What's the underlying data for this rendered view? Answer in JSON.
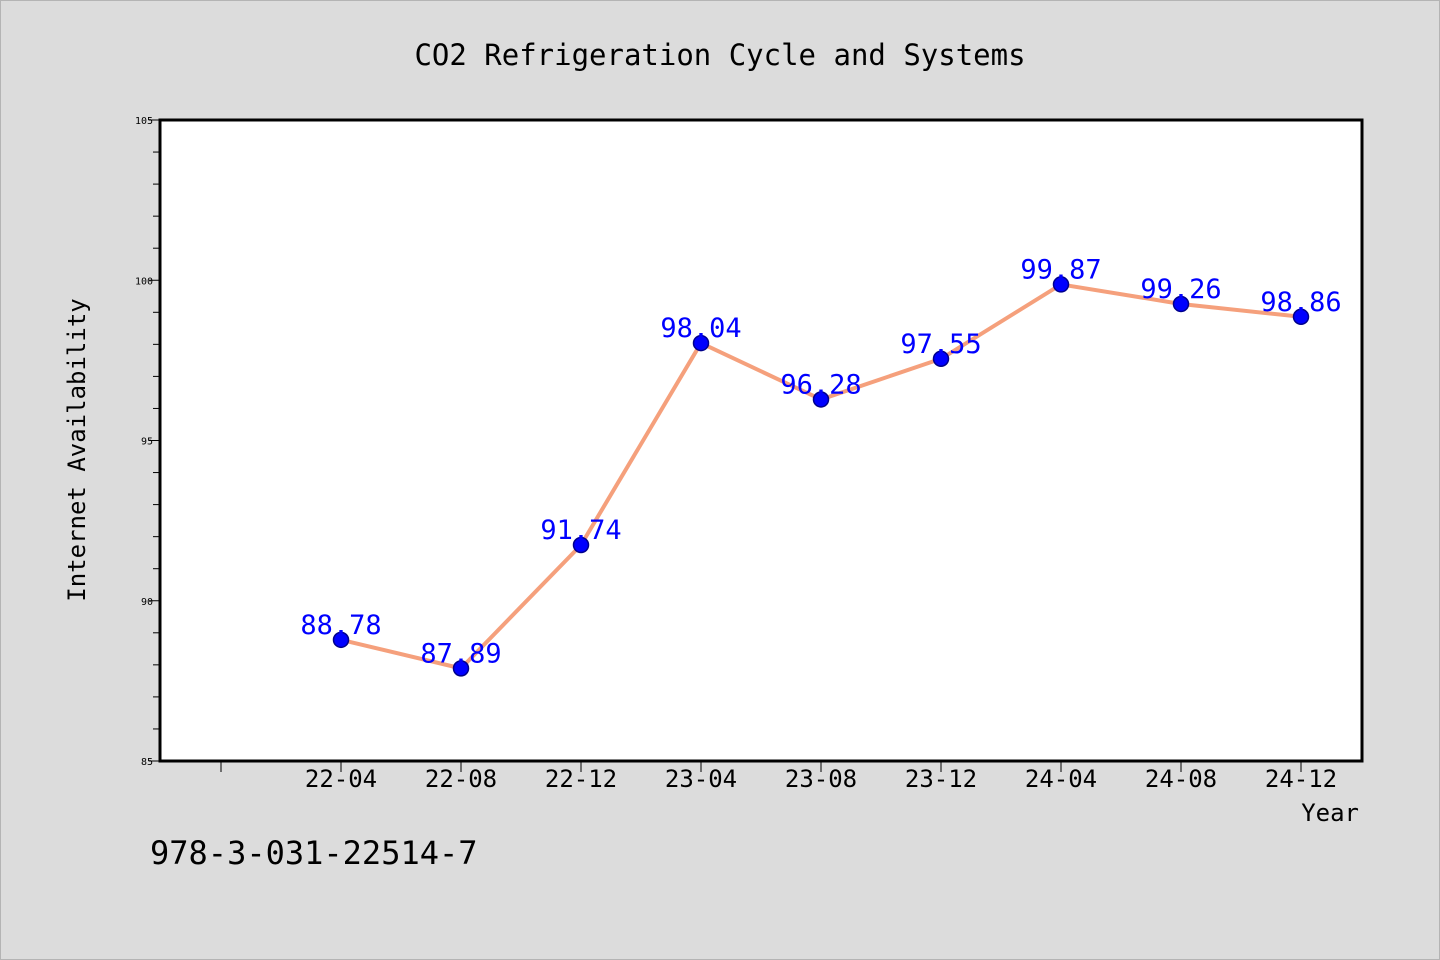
{
  "footer": {
    "code": "978-3-031-22514-7"
  },
  "colors": {
    "line": "#f5a07c",
    "marker": "#0000ff",
    "marker_edge": "#00008b",
    "label": "#0000ff",
    "plot_bg": "#ffffff",
    "page_bg": "#dcdcdc"
  },
  "chart_data": {
    "type": "line",
    "title": "CO2 Refrigeration Cycle and Systems",
    "xlabel": "Year",
    "ylabel": "Internet Availability",
    "categories": [
      "22-04",
      "22-08",
      "22-12",
      "23-04",
      "23-08",
      "23-12",
      "24-04",
      "24-08",
      "24-12"
    ],
    "values": [
      88.78,
      87.89,
      91.74,
      98.04,
      96.28,
      97.55,
      99.87,
      99.26,
      98.86
    ],
    "data_labels": [
      "88.78",
      "87.89",
      "91.74",
      "98.04",
      "96.28",
      "97.55",
      "99.87",
      "99.26",
      "98.86"
    ],
    "ylim": [
      85,
      105
    ],
    "yticks": [
      85,
      90,
      95,
      100,
      105
    ],
    "grid": false,
    "legend": "none"
  }
}
